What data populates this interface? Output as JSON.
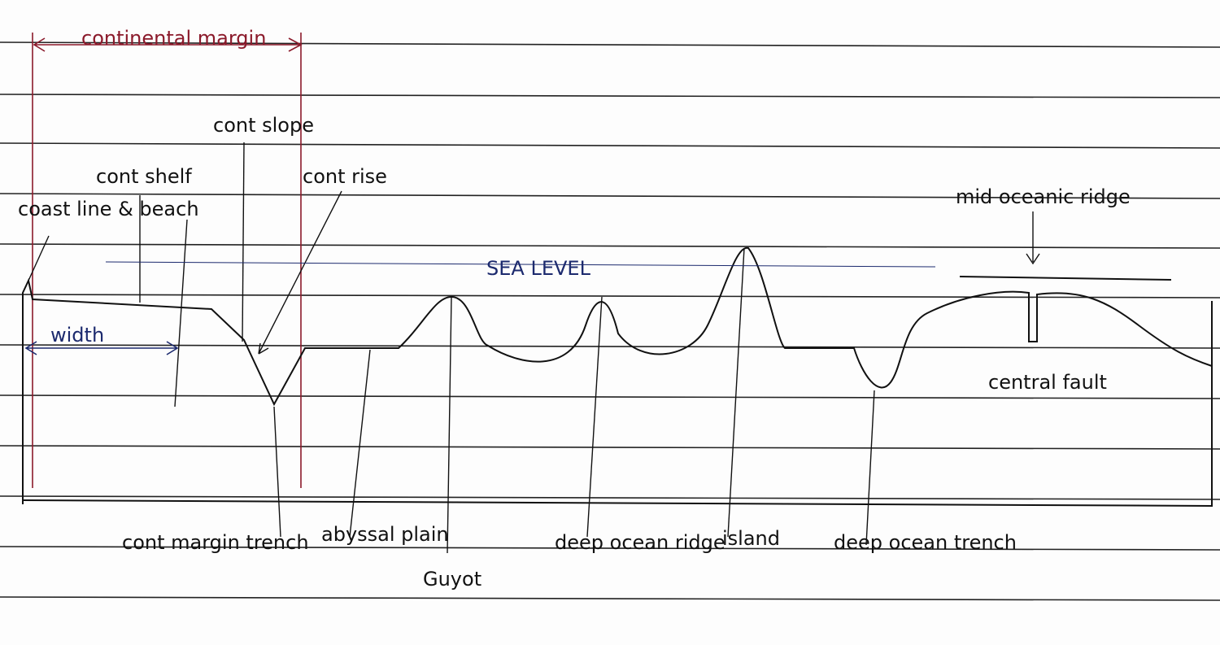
{
  "header": {
    "title": "continental margin"
  },
  "labels": {
    "coast": "coast line & beach",
    "shelf": "cont shelf",
    "slope": "cont slope",
    "rise": "cont rise",
    "width": "width",
    "sea_level": "SEA LEVEL",
    "ridge_top": "mid oceanic ridge",
    "fault": "central fault",
    "trench1": "cont margin trench",
    "abyssal": "abyssal plain",
    "guyot": "Guyot",
    "deep_ridge": "deep ocean ridge",
    "island": "island",
    "deep_trench": "deep ocean trench"
  }
}
